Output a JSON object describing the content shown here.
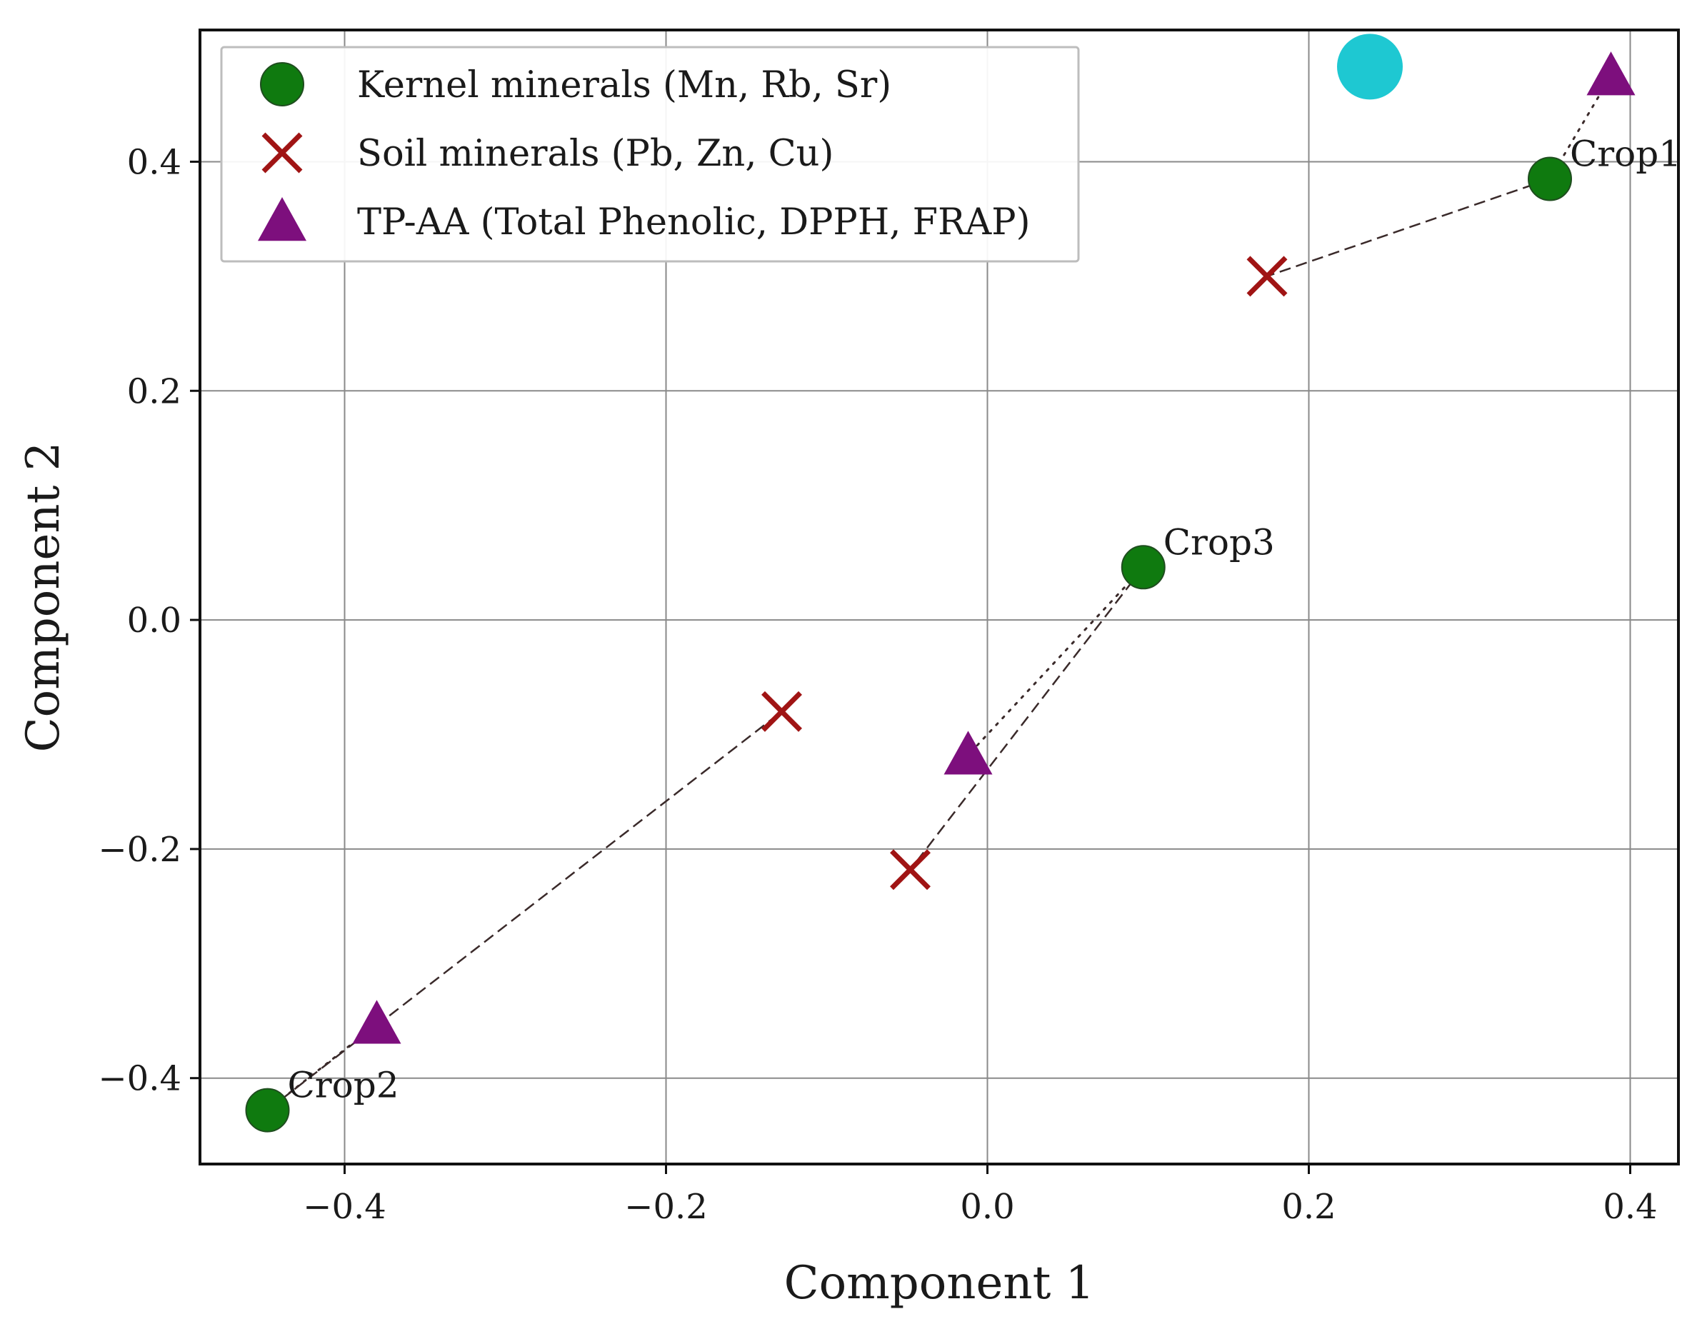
{
  "chart_data": {
    "type": "scatter",
    "title": "",
    "xlabel": "Component 1",
    "ylabel": "Component 2",
    "xlim": [
      -0.49,
      0.43
    ],
    "ylim": [
      -0.475,
      0.515
    ],
    "xticks": [
      -0.4,
      -0.2,
      0.0,
      0.2,
      0.4
    ],
    "yticks": [
      -0.4,
      -0.2,
      0.0,
      0.2,
      0.4
    ],
    "xtick_labels": [
      "−0.4",
      "−0.2",
      "0.0",
      "0.2",
      "0.4"
    ],
    "ytick_labels": [
      "−0.4",
      "−0.2",
      "0.0",
      "0.2",
      "0.4"
    ],
    "grid": true,
    "legend_position": "top-left",
    "series": [
      {
        "name": "Kernel minerals (Mn, Rb, Sr)",
        "marker": "circle",
        "color": "#0f7a0f",
        "points": [
          {
            "label": "Crop1",
            "x": 0.35,
            "y": 0.385
          },
          {
            "label": "Crop2",
            "x": -0.448,
            "y": -0.428
          },
          {
            "label": "Crop3",
            "x": 0.097,
            "y": 0.046
          }
        ]
      },
      {
        "name": "Soil minerals (Pb, Zn, Cu)",
        "marker": "x",
        "color": "#a01414",
        "points": [
          {
            "label": "Crop1",
            "x": 0.174,
            "y": 0.3
          },
          {
            "label": "Crop2",
            "x": -0.128,
            "y": -0.08
          },
          {
            "label": "Crop3",
            "x": -0.048,
            "y": -0.218
          }
        ]
      },
      {
        "name": "TP-AA (Total Phenolic, DPPH, FRAP)",
        "marker": "triangle",
        "color": "#7d0f7d",
        "points": [
          {
            "label": "Crop1",
            "x": 0.388,
            "y": 0.475
          },
          {
            "label": "Crop2",
            "x": -0.38,
            "y": -0.353
          },
          {
            "label": "Crop3",
            "x": -0.012,
            "y": -0.118
          }
        ]
      }
    ],
    "extra_markers": [
      {
        "marker": "circle",
        "color": "#1ec8d2",
        "x": 0.238,
        "y": 0.483
      }
    ],
    "connections": [
      {
        "crop": "Crop1",
        "dashed_from": "Kernel minerals (Mn, Rb, Sr)",
        "dashed_to": "Soil minerals (Pb, Zn, Cu)",
        "dotted_to": "TP-AA (Total Phenolic, DPPH, FRAP)"
      },
      {
        "crop": "Crop2",
        "dashed_from": "Kernel minerals (Mn, Rb, Sr)",
        "dashed_to": "Soil minerals (Pb, Zn, Cu)",
        "dotted_to": "TP-AA (Total Phenolic, DPPH, FRAP)"
      },
      {
        "crop": "Crop3",
        "dashed_from": "Kernel minerals (Mn, Rb, Sr)",
        "dashed_to": "Soil minerals (Pb, Zn, Cu)",
        "dotted_to": "TP-AA (Total Phenolic, DPPH, FRAP)"
      }
    ]
  }
}
